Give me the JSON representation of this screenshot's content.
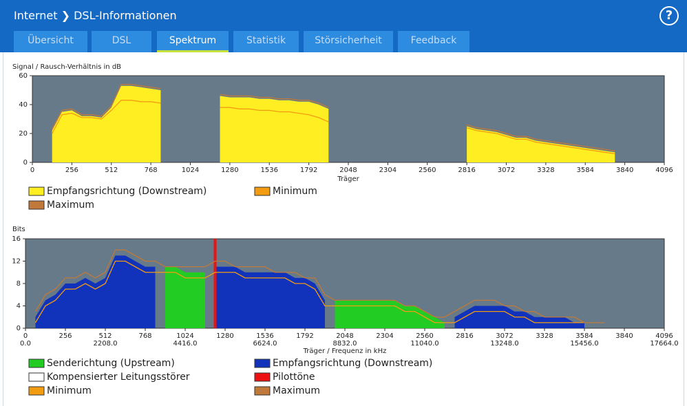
{
  "header": {
    "section": "Internet",
    "title": "DSL-Informationen"
  },
  "tabs": [
    "Übersicht",
    "DSL",
    "Spektrum",
    "Statistik",
    "Störsicherheit",
    "Feedback"
  ],
  "active_tab": 2,
  "chart_data": [
    {
      "type": "area",
      "y_label": "Signal / Rausch-Verhältnis in dB",
      "x_label": "Träger",
      "xlim": [
        0,
        4096
      ],
      "ylim": [
        0,
        60
      ],
      "xticks": [
        0,
        256,
        512,
        768,
        1024,
        1280,
        1536,
        1792,
        2048,
        2304,
        2560,
        2816,
        3072,
        3328,
        3584,
        3840,
        4096
      ],
      "yticks": [
        0,
        20,
        40,
        60
      ],
      "x": [
        0,
        64,
        128,
        192,
        256,
        320,
        384,
        448,
        512,
        576,
        640,
        704,
        768,
        832,
        896,
        960,
        1024,
        1088,
        1152,
        1216,
        1280,
        1344,
        1408,
        1472,
        1536,
        1600,
        1664,
        1728,
        1792,
        1856,
        1920,
        1984,
        2048,
        2112,
        2176,
        2240,
        2304,
        2368,
        2432,
        2496,
        2560,
        2624,
        2688,
        2752,
        2816,
        2880,
        2944,
        3008,
        3072,
        3136,
        3200,
        3264,
        3328,
        3392,
        3456,
        3520,
        3584,
        3648,
        3712,
        3776,
        3840,
        3904,
        3968,
        4032,
        4096
      ],
      "series": [
        {
          "name": "Empfangsrichtung (Downstream)",
          "color": "#ffee22",
          "style": "area",
          "values": [
            null,
            null,
            22,
            35,
            36,
            32,
            32,
            31,
            38,
            53,
            53,
            52,
            51,
            50,
            null,
            null,
            null,
            null,
            null,
            46,
            45,
            45,
            45,
            44,
            44,
            43,
            43,
            42,
            42,
            40,
            37,
            null,
            null,
            null,
            null,
            null,
            null,
            null,
            null,
            null,
            null,
            null,
            null,
            null,
            25,
            23,
            22,
            21,
            19,
            17,
            17,
            15,
            14,
            13,
            12,
            11,
            10,
            9,
            8,
            7,
            null,
            null,
            null,
            null,
            null
          ]
        },
        {
          "name": "Minimum",
          "color": "#f39c12",
          "style": "line",
          "values": [
            null,
            null,
            20,
            33,
            34,
            31,
            31,
            30,
            36,
            43,
            43,
            42,
            42,
            41,
            null,
            null,
            null,
            null,
            null,
            38,
            38,
            37,
            37,
            36,
            36,
            35,
            35,
            34,
            33,
            31,
            28,
            null,
            null,
            null,
            null,
            null,
            null,
            null,
            null,
            null,
            null,
            null,
            null,
            null,
            24,
            22,
            21,
            20,
            18,
            16,
            16,
            14,
            13,
            12,
            11,
            10,
            9,
            8,
            7,
            6,
            null,
            null,
            null,
            null,
            null
          ]
        },
        {
          "name": "Maximum",
          "color": "#c0793a",
          "style": "line",
          "values": [
            null,
            null,
            23,
            36,
            37,
            33,
            33,
            32,
            39,
            54,
            54,
            53,
            52,
            51,
            null,
            null,
            null,
            null,
            null,
            47,
            46,
            46,
            46,
            45,
            45,
            44,
            44,
            43,
            43,
            41,
            38,
            null,
            null,
            null,
            null,
            null,
            null,
            null,
            null,
            null,
            null,
            null,
            null,
            null,
            26,
            24,
            23,
            22,
            20,
            18,
            18,
            16,
            15,
            14,
            13,
            12,
            11,
            10,
            9,
            8,
            null,
            null,
            null,
            null,
            null
          ]
        }
      ]
    },
    {
      "type": "area",
      "y_label": "Bits",
      "x_label": "Träger / Frequenz in kHz",
      "xlim": [
        0,
        4096
      ],
      "ylim": [
        0,
        16
      ],
      "xticks": [
        0,
        256,
        512,
        768,
        1024,
        1280,
        1536,
        1792,
        2048,
        2304,
        2560,
        2816,
        3072,
        3328,
        3584,
        3840,
        4096
      ],
      "xticks_freq": [
        {
          "value": 0,
          "label": "0.0"
        },
        {
          "value": 512,
          "label": "2208.0"
        },
        {
          "value": 1024,
          "label": "4416.0"
        },
        {
          "value": 1536,
          "label": "6624.0"
        },
        {
          "value": 2048,
          "label": "8832.0"
        },
        {
          "value": 2560,
          "label": "11040.0"
        },
        {
          "value": 3072,
          "label": "13248.0"
        },
        {
          "value": 3584,
          "label": "15456.0"
        },
        {
          "value": 4096,
          "label": "17664.0"
        }
      ],
      "yticks": [
        0,
        4,
        8,
        12,
        16
      ],
      "x": [
        0,
        64,
        128,
        192,
        256,
        320,
        384,
        448,
        512,
        576,
        640,
        704,
        768,
        832,
        896,
        960,
        1024,
        1088,
        1152,
        1216,
        1280,
        1344,
        1408,
        1472,
        1536,
        1600,
        1664,
        1728,
        1792,
        1856,
        1920,
        1984,
        2048,
        2112,
        2176,
        2240,
        2304,
        2368,
        2432,
        2496,
        2560,
        2624,
        2688,
        2752,
        2816,
        2880,
        2944,
        3008,
        3072,
        3136,
        3200,
        3264,
        3328,
        3392,
        3456,
        3520,
        3584,
        3648,
        3712,
        3776,
        3840,
        3904,
        3968,
        4032,
        4096
      ],
      "series": [
        {
          "name": "Senderichtung (Upstream)",
          "color": "#22cc22",
          "style": "area",
          "values": [
            null,
            null,
            null,
            null,
            null,
            null,
            null,
            null,
            null,
            null,
            null,
            null,
            null,
            null,
            11,
            11,
            10,
            10,
            10,
            null,
            null,
            null,
            null,
            null,
            null,
            null,
            null,
            null,
            null,
            null,
            null,
            5,
            5,
            5,
            5,
            5,
            5,
            5,
            4,
            4,
            3,
            2,
            1,
            null,
            null,
            null,
            null,
            null,
            null,
            null,
            null,
            null,
            null,
            null,
            null,
            null,
            null,
            null,
            null,
            null,
            null,
            null,
            null,
            null,
            null
          ]
        },
        {
          "name": "Empfangsrichtung (Downstream)",
          "color": "#1133bb",
          "style": "area",
          "values": [
            null,
            2,
            5,
            6,
            8,
            8,
            9,
            8,
            9,
            13,
            13,
            12,
            11,
            11,
            null,
            null,
            null,
            null,
            null,
            11,
            11,
            11,
            10,
            10,
            10,
            10,
            10,
            9,
            9,
            8,
            5,
            null,
            null,
            null,
            null,
            null,
            null,
            null,
            null,
            null,
            null,
            null,
            null,
            2,
            3,
            4,
            4,
            4,
            4,
            3,
            3,
            2,
            2,
            2,
            2,
            1,
            1,
            null,
            null,
            null,
            null,
            null,
            null,
            null,
            null
          ]
        },
        {
          "name": "Kompensierter Leitungsstörer",
          "color": "#ffffff",
          "style": "area"
        },
        {
          "name": "Pilottöne",
          "color": "#ee1111",
          "style": "pilot",
          "carriers": [
            1216
          ]
        },
        {
          "name": "Minimum",
          "color": "#f39c12",
          "style": "line",
          "values": [
            null,
            1,
            4,
            5,
            7,
            7,
            8,
            7,
            8,
            12,
            12,
            11,
            10,
            10,
            10,
            10,
            9,
            9,
            9,
            10,
            10,
            10,
            9,
            9,
            9,
            9,
            9,
            8,
            8,
            7,
            4,
            4,
            4,
            4,
            4,
            4,
            4,
            4,
            3,
            3,
            2,
            1,
            1,
            1,
            2,
            3,
            3,
            3,
            3,
            2,
            2,
            1,
            1,
            1,
            1,
            1,
            1,
            null,
            null,
            null,
            null,
            null,
            null,
            null,
            null
          ]
        },
        {
          "name": "Maximum",
          "color": "#c0793a",
          "style": "line",
          "values": [
            null,
            3,
            6,
            7,
            9,
            9,
            10,
            9,
            10,
            14,
            14,
            13,
            12,
            12,
            11,
            11,
            11,
            11,
            11,
            12,
            12,
            11,
            11,
            11,
            11,
            10,
            10,
            10,
            9,
            9,
            6,
            5,
            5,
            5,
            5,
            5,
            5,
            5,
            4,
            4,
            3,
            2,
            2,
            3,
            4,
            5,
            5,
            5,
            4,
            4,
            3,
            3,
            2,
            2,
            2,
            2,
            1,
            1,
            1,
            null,
            null,
            null,
            null,
            null,
            null
          ]
        }
      ]
    }
  ]
}
